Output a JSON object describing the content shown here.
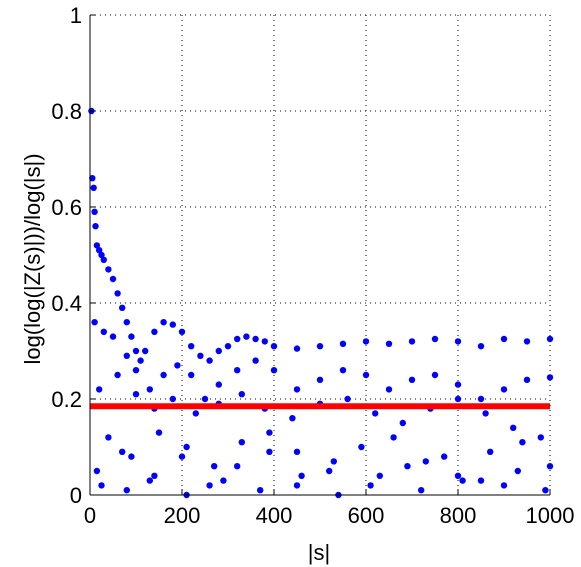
{
  "chart_data": {
    "type": "scatter",
    "title": "",
    "xlabel": "|s|",
    "ylabel": "log(log(|Z(s)|))/log(|s|)",
    "xlim": [
      0,
      1000
    ],
    "ylim": [
      0,
      1
    ],
    "xticks": [
      0,
      200,
      400,
      600,
      800,
      1000
    ],
    "yticks": [
      0,
      0.2,
      0.4,
      0.6,
      0.8,
      1
    ],
    "xtick_labels": [
      "0",
      "200",
      "400",
      "600",
      "800",
      "1000"
    ],
    "ytick_labels": [
      "0",
      "0.2",
      "0.4",
      "0.6",
      "0.8",
      "1"
    ],
    "grid": true,
    "grid_style": "dotted",
    "legend": "none",
    "series": [
      {
        "type": "scatter",
        "color": "#0000ff",
        "x": [
          3,
          5,
          8,
          10,
          12,
          15,
          20,
          25,
          30,
          40,
          50,
          60,
          70,
          80,
          90,
          100,
          110,
          120,
          140,
          160,
          180,
          200,
          220,
          240,
          260,
          280,
          300,
          320,
          340,
          360,
          380,
          400,
          450,
          500,
          550,
          600,
          650,
          700,
          750,
          800,
          850,
          900,
          950,
          1000,
          10,
          30,
          50,
          80,
          100,
          130,
          160,
          190,
          220,
          250,
          280,
          320,
          360,
          400,
          450,
          500,
          550,
          600,
          650,
          700,
          750,
          800,
          850,
          900,
          950,
          1000,
          20,
          60,
          100,
          140,
          180,
          230,
          280,
          330,
          380,
          440,
          500,
          560,
          620,
          680,
          740,
          800,
          860,
          920,
          980,
          40,
          90,
          150,
          210,
          270,
          330,
          390,
          450,
          520,
          590,
          660,
          730,
          800,
          870,
          940,
          1000,
          15,
          70,
          130,
          200,
          260,
          320,
          390,
          460,
          530,
          610,
          690,
          770,
          850,
          930,
          25,
          80,
          140,
          210,
          290,
          370,
          450,
          540,
          630,
          720,
          810,
          900,
          990
        ],
        "y": [
          0.8,
          0.66,
          0.64,
          0.59,
          0.56,
          0.52,
          0.51,
          0.5,
          0.49,
          0.47,
          0.45,
          0.42,
          0.39,
          0.36,
          0.33,
          0.3,
          0.28,
          0.3,
          0.34,
          0.36,
          0.355,
          0.34,
          0.31,
          0.29,
          0.28,
          0.3,
          0.31,
          0.325,
          0.33,
          0.325,
          0.32,
          0.31,
          0.305,
          0.31,
          0.315,
          0.32,
          0.315,
          0.32,
          0.325,
          0.32,
          0.31,
          0.325,
          0.32,
          0.325,
          0.36,
          0.34,
          0.33,
          0.29,
          0.26,
          0.22,
          0.25,
          0.27,
          0.25,
          0.2,
          0.23,
          0.26,
          0.28,
          0.26,
          0.22,
          0.24,
          0.26,
          0.25,
          0.22,
          0.24,
          0.25,
          0.23,
          0.2,
          0.22,
          0.24,
          0.245,
          0.22,
          0.25,
          0.21,
          0.18,
          0.2,
          0.17,
          0.19,
          0.21,
          0.18,
          0.16,
          0.19,
          0.2,
          0.17,
          0.15,
          0.18,
          0.2,
          0.17,
          0.14,
          0.12,
          0.12,
          0.08,
          0.13,
          0.1,
          0.06,
          0.11,
          0.13,
          0.09,
          0.05,
          0.1,
          0.12,
          0.07,
          0.04,
          0.09,
          0.11,
          0.06,
          0.05,
          0.09,
          0.03,
          0.08,
          0.02,
          0.06,
          0.09,
          0.04,
          0.07,
          0.02,
          0.06,
          0.08,
          0.03,
          0.05,
          0.02,
          0.01,
          0.04,
          0.0,
          0.03,
          0.01,
          0.02,
          0.0,
          0.04,
          0.01,
          0.03,
          0.02,
          0.01
        ]
      },
      {
        "type": "line",
        "color": "#ff0000",
        "x": [
          0,
          1000
        ],
        "y": [
          0.185,
          0.185
        ]
      }
    ]
  }
}
